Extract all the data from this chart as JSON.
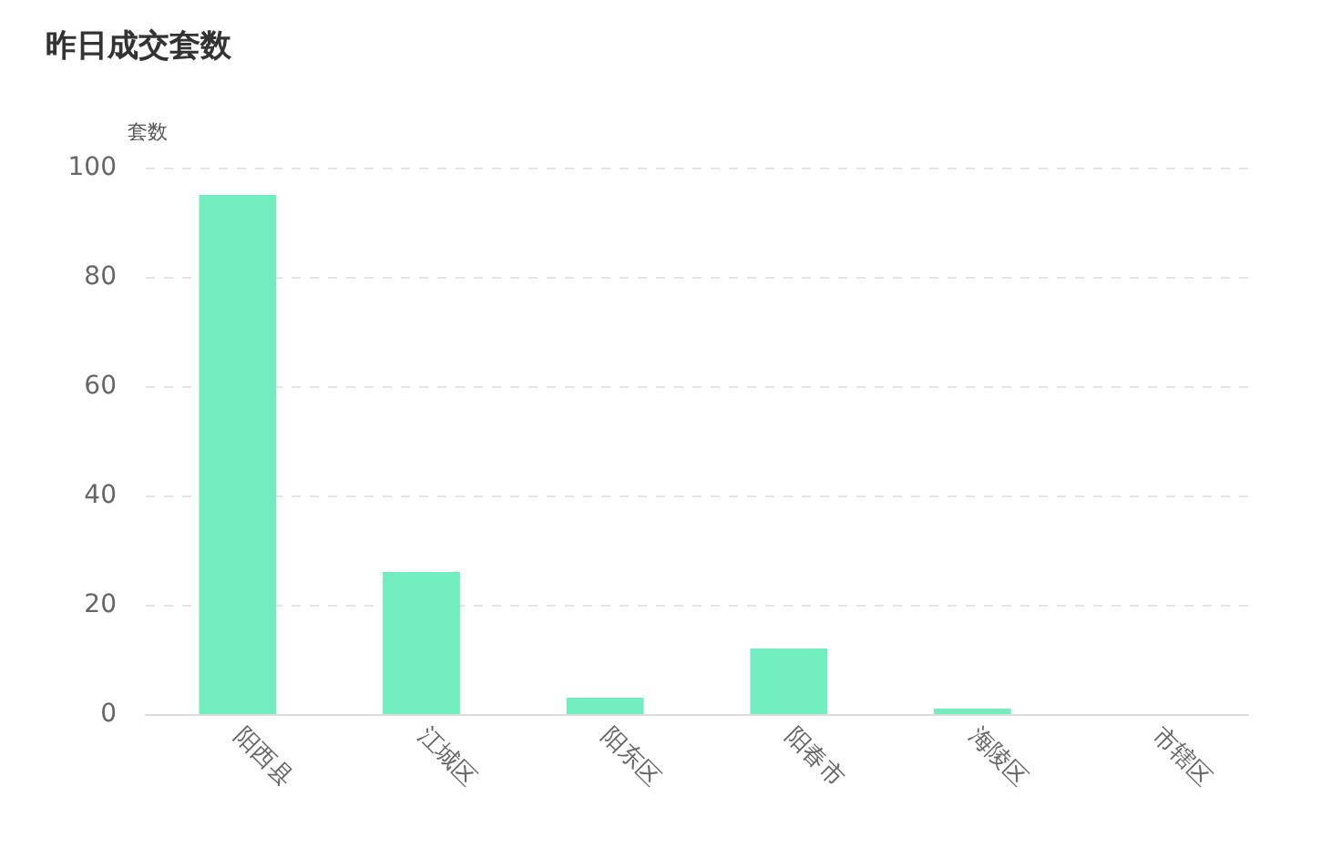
{
  "chart_data": {
    "type": "bar",
    "title": "昨日成交套数",
    "ylabel": "套数",
    "categories": [
      "阳西县",
      "江城区",
      "阳东区",
      "阳春市",
      "海陵区",
      "市辖区"
    ],
    "values": [
      95,
      26,
      3,
      12,
      1,
      0
    ],
    "color": "#72edbf",
    "ylim": [
      0,
      100
    ],
    "yticks": [
      0,
      20,
      40,
      60,
      80,
      100
    ],
    "grid": "y"
  }
}
